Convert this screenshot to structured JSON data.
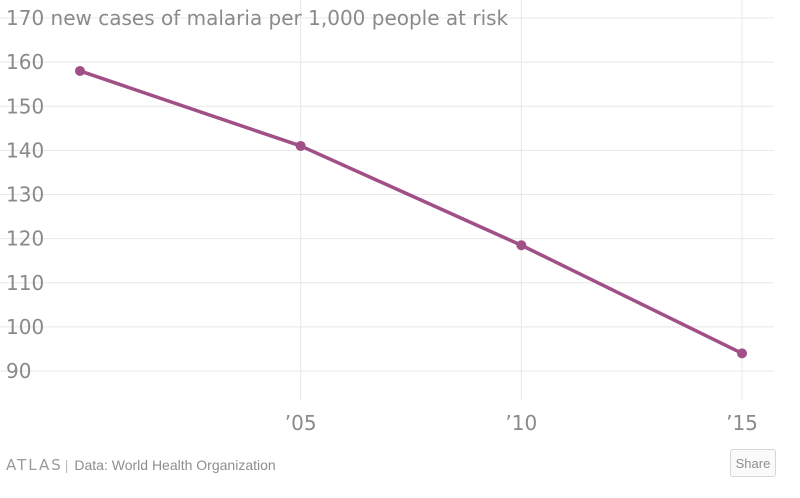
{
  "chart_data": {
    "type": "line",
    "x": [
      "2000",
      "2005",
      "2010",
      "2015"
    ],
    "x_tick_labels": [
      {
        "x": "2005",
        "label": "’05"
      },
      {
        "x": "2010",
        "label": "’10"
      },
      {
        "x": "2015",
        "label": "’15"
      }
    ],
    "series": [
      {
        "values": [
          158,
          141,
          118.5,
          94
        ],
        "color": "#a14f87"
      }
    ],
    "y_tick_labels": [
      "170 new cases of malaria per 1,000 people at risk",
      "160",
      "150",
      "140",
      "130",
      "120",
      "110",
      "100",
      "90"
    ],
    "y_tick_values": [
      170,
      160,
      150,
      140,
      130,
      120,
      110,
      100,
      90
    ],
    "ylim": [
      82,
      172
    ],
    "grid": true,
    "title": "",
    "xlabel": "",
    "ylabel": ""
  },
  "footer": {
    "logo": "ATLAS",
    "separator": "|",
    "source": "Data: World Health Organization",
    "share_label": "Share"
  }
}
